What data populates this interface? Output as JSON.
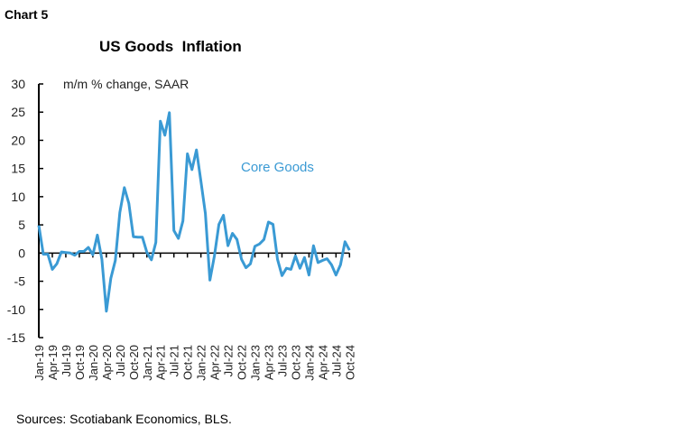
{
  "chart_label": "Chart 5",
  "source": "Sources: Scotiabank Economics, BLS.",
  "chart_data": {
    "type": "line",
    "title": "US Goods  Inflation",
    "ylabel": "m/m % change, SAAR",
    "ylim": [
      -15,
      30
    ],
    "yticks": [
      -15,
      -10,
      -5,
      0,
      5,
      10,
      15,
      20,
      25,
      30
    ],
    "x_start": "Jan-19",
    "x_end": "Oct-24",
    "xtick_labels": [
      "Jan-19",
      "Apr-19",
      "Jul-19",
      "Oct-19",
      "Jan-20",
      "Apr-20",
      "Jul-20",
      "Oct-20",
      "Jan-21",
      "Apr-21",
      "Jul-21",
      "Oct-21",
      "Jan-22",
      "Apr-22",
      "Jul-22",
      "Oct-22",
      "Jan-23",
      "Apr-23",
      "Jul-23",
      "Oct-23",
      "Jan-24",
      "Apr-24",
      "Jul-24",
      "Oct-24"
    ],
    "grid": false,
    "series": [
      {
        "name": "Core Goods",
        "color": "#3a9ad4",
        "values": [
          4.9,
          -0.2,
          -0.2,
          -2.9,
          -1.9,
          0.2,
          0.1,
          0.0,
          -0.4,
          0.3,
          0.3,
          1.0,
          -0.3,
          3.2,
          -1.1,
          -10.3,
          -4.5,
          -1.3,
          7.2,
          11.6,
          8.8,
          2.9,
          2.8,
          2.8,
          0.1,
          -1.2,
          1.9,
          23.4,
          20.9,
          24.9,
          4.0,
          2.6,
          5.7,
          17.6,
          14.8,
          18.3,
          12.8,
          7.0,
          -4.8,
          -0.5,
          5.1,
          6.7,
          1.3,
          3.5,
          2.4,
          -1.1,
          -2.6,
          -1.9,
          1.2,
          1.6,
          2.4,
          5.5,
          5.1,
          -1.1,
          -4.0,
          -2.7,
          -2.9,
          -0.5,
          -2.7,
          -0.8,
          -3.9,
          1.3,
          -1.7,
          -1.3,
          -1.0,
          -2.1,
          -3.9,
          -2.1,
          2.0,
          0.5
        ]
      }
    ]
  }
}
